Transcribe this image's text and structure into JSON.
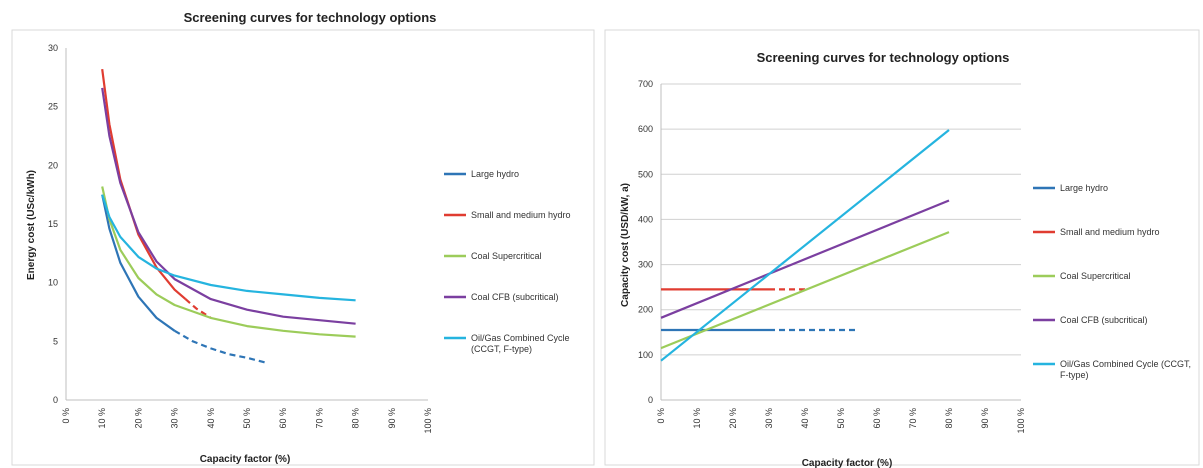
{
  "chart_data": [
    {
      "type": "line",
      "title": "Screening curves for technology options",
      "xlabel": "Capacity factor (%)",
      "ylabel": "Energy cost (USc/kWh)",
      "x_tick_labels": [
        "0 %",
        "10 %",
        "20 %",
        "30 %",
        "40 %",
        "50 %",
        "60 %",
        "70 %",
        "80 %",
        "90 %",
        "100 %"
      ],
      "y_tick_labels": [
        "0",
        "5",
        "10",
        "15",
        "20",
        "25",
        "30"
      ],
      "xlim": [
        0,
        100
      ],
      "ylim": [
        0,
        30
      ],
      "grid": false,
      "legend_position": "right",
      "series": [
        {
          "name": "Large hydro",
          "color": "#2e75b6",
          "solid": [
            [
              10,
              17.5
            ],
            [
              12,
              14.6
            ],
            [
              15,
              11.7
            ],
            [
              20,
              8.8
            ],
            [
              25,
              7.0
            ],
            [
              30,
              5.9
            ]
          ],
          "dashed": [
            [
              30,
              5.9
            ],
            [
              35,
              5.0
            ],
            [
              40,
              4.4
            ],
            [
              45,
              3.9
            ],
            [
              50,
              3.6
            ],
            [
              55,
              3.2
            ]
          ]
        },
        {
          "name": "Small and medium hydro",
          "color": "#e03c31",
          "solid": [
            [
              10,
              28.2
            ],
            [
              12,
              23.5
            ],
            [
              15,
              18.8
            ],
            [
              20,
              14.1
            ],
            [
              25,
              11.3
            ],
            [
              30,
              9.4
            ],
            [
              33,
              8.6
            ]
          ],
          "dashed": [
            [
              33,
              8.6
            ],
            [
              36,
              7.8
            ],
            [
              40,
              7.0
            ]
          ]
        },
        {
          "name": "Coal Supercritical",
          "color": "#9ccc5a",
          "solid": [
            [
              10,
              18.2
            ],
            [
              12,
              15.4
            ],
            [
              15,
              12.8
            ],
            [
              20,
              10.4
            ],
            [
              25,
              9.0
            ],
            [
              30,
              8.1
            ],
            [
              40,
              7.0
            ],
            [
              50,
              6.3
            ],
            [
              60,
              5.9
            ],
            [
              70,
              5.6
            ],
            [
              80,
              5.4
            ]
          ],
          "dashed": []
        },
        {
          "name": "Coal CFB (subcritical)",
          "color": "#7b3fa0",
          "solid": [
            [
              10,
              26.6
            ],
            [
              12,
              22.5
            ],
            [
              15,
              18.5
            ],
            [
              20,
              14.3
            ],
            [
              25,
              11.8
            ],
            [
              30,
              10.3
            ],
            [
              40,
              8.6
            ],
            [
              50,
              7.7
            ],
            [
              60,
              7.1
            ],
            [
              70,
              6.8
            ],
            [
              80,
              6.5
            ]
          ],
          "dashed": []
        },
        {
          "name": "Oil/Gas Combined Cycle (CCGT, F-type)",
          "color": "#25b4df",
          "solid": [
            [
              10,
              17.5
            ],
            [
              12,
              15.6
            ],
            [
              15,
              13.9
            ],
            [
              20,
              12.2
            ],
            [
              25,
              11.2
            ],
            [
              30,
              10.6
            ],
            [
              40,
              9.8
            ],
            [
              50,
              9.3
            ],
            [
              60,
              9.0
            ],
            [
              70,
              8.7
            ],
            [
              80,
              8.5
            ]
          ],
          "dashed": []
        }
      ]
    },
    {
      "type": "line",
      "title": "Screening curves for technology options",
      "xlabel": "Capacity factor (%)",
      "ylabel": "Capacity cost (USD/kW, a)",
      "x_tick_labels": [
        "0 %",
        "10 %",
        "20 %",
        "30 %",
        "40 %",
        "50 %",
        "60 %",
        "70 %",
        "80 %",
        "90 %",
        "100 %"
      ],
      "y_tick_labels": [
        "0",
        "100",
        "200",
        "300",
        "400",
        "500",
        "600",
        "700"
      ],
      "xlim": [
        0,
        100
      ],
      "ylim": [
        0,
        700
      ],
      "grid": true,
      "legend_position": "right",
      "series": [
        {
          "name": "Large hydro",
          "color": "#2e75b6",
          "solid": [
            [
              0,
              155
            ],
            [
              30,
              155
            ]
          ],
          "dashed": [
            [
              30,
              155
            ],
            [
              55,
              155
            ]
          ]
        },
        {
          "name": "Small and medium hydro",
          "color": "#e03c31",
          "solid": [
            [
              0,
              245
            ],
            [
              30,
              245
            ]
          ],
          "dashed": [
            [
              30,
              245
            ],
            [
              40,
              245
            ]
          ]
        },
        {
          "name": "Coal Supercritical",
          "color": "#9ccc5a",
          "solid": [
            [
              0,
              115
            ],
            [
              80,
              372
            ]
          ],
          "dashed": []
        },
        {
          "name": "Coal CFB (subcritical)",
          "color": "#7b3fa0",
          "solid": [
            [
              0,
              182
            ],
            [
              80,
              442
            ]
          ],
          "dashed": []
        },
        {
          "name": "Oil/Gas Combined Cycle (CCGT, F-type)",
          "color": "#25b4df",
          "solid": [
            [
              0,
              87
            ],
            [
              80,
              598
            ]
          ],
          "dashed": []
        }
      ]
    }
  ]
}
